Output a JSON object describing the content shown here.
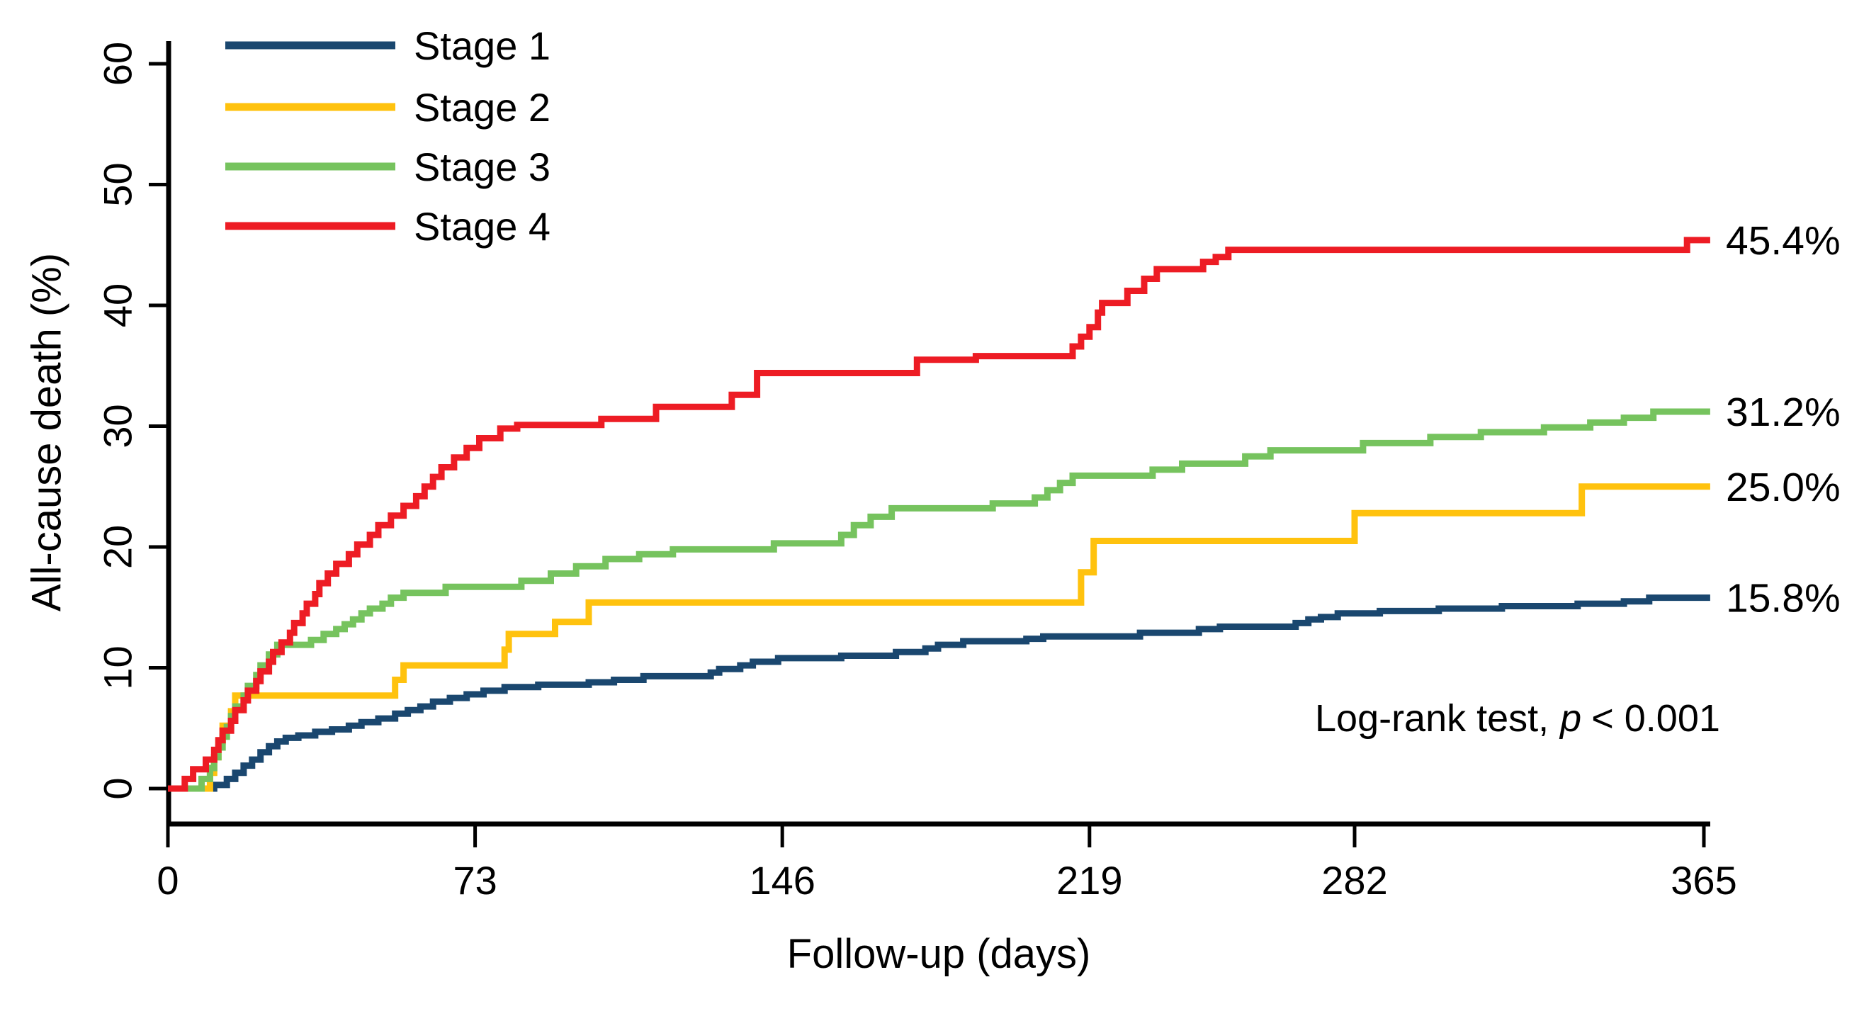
{
  "figure": {
    "background": "#ffffff",
    "axis_color": "#000000",
    "annotation": {
      "prefix": "Log-rank test,",
      "p_symbol": "p",
      "suffix": "< 0.001"
    }
  },
  "chart_data": {
    "type": "line",
    "subtype": "kaplan-meier-cumulative-incidence-step",
    "title": "",
    "xlabel": "Follow-up (days)",
    "ylabel": "All-cause death (%)",
    "xlim": [
      0,
      365
    ],
    "ylim": [
      0,
      60
    ],
    "x_ticks": [
      0,
      73,
      146,
      219,
      282,
      365
    ],
    "y_ticks": [
      0,
      10,
      20,
      30,
      40,
      50,
      60
    ],
    "grid": false,
    "legend_position": "top-left",
    "annotation": "Log-rank test, p < 0.001",
    "series": [
      {
        "name": "Stage 1",
        "color": "#1A476F",
        "final_label": "15.8%",
        "final_value": 15.8,
        "points": [
          [
            0,
            0
          ],
          [
            11,
            0.3
          ],
          [
            14,
            0.8
          ],
          [
            16,
            1.3
          ],
          [
            18,
            1.9
          ],
          [
            20,
            2.4
          ],
          [
            22,
            3.0
          ],
          [
            24,
            3.5
          ],
          [
            26,
            3.9
          ],
          [
            28,
            4.2
          ],
          [
            31,
            4.4
          ],
          [
            35,
            4.7
          ],
          [
            39,
            4.9
          ],
          [
            43,
            5.2
          ],
          [
            46,
            5.5
          ],
          [
            50,
            5.8
          ],
          [
            54,
            6.2
          ],
          [
            57,
            6.5
          ],
          [
            60,
            6.8
          ],
          [
            63,
            7.2
          ],
          [
            67,
            7.5
          ],
          [
            71,
            7.8
          ],
          [
            75,
            8.1
          ],
          [
            80,
            8.4
          ],
          [
            88,
            8.6
          ],
          [
            100,
            8.8
          ],
          [
            106,
            9.0
          ],
          [
            113,
            9.3
          ],
          [
            129,
            9.6
          ],
          [
            131,
            9.9
          ],
          [
            136,
            10.2
          ],
          [
            139,
            10.5
          ],
          [
            145,
            10.8
          ],
          [
            160,
            11.0
          ],
          [
            173,
            11.3
          ],
          [
            180,
            11.6
          ],
          [
            183,
            11.9
          ],
          [
            189,
            12.2
          ],
          [
            204,
            12.4
          ],
          [
            208,
            12.6
          ],
          [
            231,
            12.9
          ],
          [
            245,
            13.2
          ],
          [
            250,
            13.4
          ],
          [
            268,
            13.7
          ],
          [
            271,
            14.0
          ],
          [
            274,
            14.2
          ],
          [
            278,
            14.5
          ],
          [
            288,
            14.7
          ],
          [
            302,
            14.9
          ],
          [
            317,
            15.1
          ],
          [
            335,
            15.3
          ],
          [
            346,
            15.5
          ],
          [
            352,
            15.8
          ]
        ]
      },
      {
        "name": "Stage 2",
        "color": "#FFC20E",
        "final_label": "25.0%",
        "final_value": 25.0,
        "points": [
          [
            0,
            0
          ],
          [
            10,
            1.3
          ],
          [
            11,
            2.6
          ],
          [
            12,
            3.9
          ],
          [
            13,
            5.2
          ],
          [
            15,
            6.4
          ],
          [
            16,
            7.7
          ],
          [
            54,
            9.0
          ],
          [
            56,
            10.2
          ],
          [
            80,
            11.5
          ],
          [
            81,
            12.8
          ],
          [
            92,
            13.8
          ],
          [
            100,
            15.4
          ],
          [
            217,
            17.9
          ],
          [
            220,
            20.5
          ],
          [
            282,
            22.8
          ],
          [
            336,
            25.0
          ]
        ]
      },
      {
        "name": "Stage 3",
        "color": "#76C35E",
        "final_label": "31.2%",
        "final_value": 31.2,
        "points": [
          [
            0,
            0
          ],
          [
            8,
            0.8
          ],
          [
            10,
            1.7
          ],
          [
            11,
            2.6
          ],
          [
            12,
            3.4
          ],
          [
            13,
            4.3
          ],
          [
            14,
            5.1
          ],
          [
            15,
            6.0
          ],
          [
            16,
            6.8
          ],
          [
            18,
            7.7
          ],
          [
            19,
            8.5
          ],
          [
            21,
            9.4
          ],
          [
            22,
            10.2
          ],
          [
            24,
            11.1
          ],
          [
            26,
            11.9
          ],
          [
            34,
            12.3
          ],
          [
            37,
            12.8
          ],
          [
            40,
            13.2
          ],
          [
            42,
            13.6
          ],
          [
            44,
            14.0
          ],
          [
            46,
            14.5
          ],
          [
            48,
            14.9
          ],
          [
            51,
            15.3
          ],
          [
            53,
            15.8
          ],
          [
            56,
            16.2
          ],
          [
            66,
            16.7
          ],
          [
            84,
            17.2
          ],
          [
            91,
            17.8
          ],
          [
            97,
            18.4
          ],
          [
            104,
            19.0
          ],
          [
            112,
            19.4
          ],
          [
            120,
            19.8
          ],
          [
            144,
            20.3
          ],
          [
            160,
            21.0
          ],
          [
            163,
            21.8
          ],
          [
            167,
            22.5
          ],
          [
            172,
            23.2
          ],
          [
            196,
            23.6
          ],
          [
            206,
            24.1
          ],
          [
            209,
            24.7
          ],
          [
            212,
            25.3
          ],
          [
            215,
            25.9
          ],
          [
            234,
            26.4
          ],
          [
            241,
            26.9
          ],
          [
            256,
            27.5
          ],
          [
            262,
            28.0
          ],
          [
            284,
            28.6
          ],
          [
            300,
            29.1
          ],
          [
            312,
            29.5
          ],
          [
            327,
            29.9
          ],
          [
            338,
            30.3
          ],
          [
            346,
            30.7
          ],
          [
            353,
            31.2
          ]
        ]
      },
      {
        "name": "Stage 4",
        "color": "#ED1C24",
        "final_label": "45.4%",
        "final_value": 45.4,
        "points": [
          [
            0,
            0
          ],
          [
            4,
            0.8
          ],
          [
            6,
            1.6
          ],
          [
            9,
            2.4
          ],
          [
            11,
            3.2
          ],
          [
            12,
            4.0
          ],
          [
            13,
            4.8
          ],
          [
            15,
            5.6
          ],
          [
            16,
            6.5
          ],
          [
            18,
            7.3
          ],
          [
            19,
            8.1
          ],
          [
            21,
            8.9
          ],
          [
            22,
            9.7
          ],
          [
            24,
            10.5
          ],
          [
            25,
            11.3
          ],
          [
            27,
            12.1
          ],
          [
            29,
            12.9
          ],
          [
            30,
            13.7
          ],
          [
            32,
            14.5
          ],
          [
            33,
            15.3
          ],
          [
            35,
            16.1
          ],
          [
            36,
            17.0
          ],
          [
            38,
            17.8
          ],
          [
            40,
            18.6
          ],
          [
            43,
            19.4
          ],
          [
            45,
            20.2
          ],
          [
            48,
            21.0
          ],
          [
            50,
            21.8
          ],
          [
            53,
            22.6
          ],
          [
            56,
            23.4
          ],
          [
            59,
            24.2
          ],
          [
            61,
            25.0
          ],
          [
            63,
            25.8
          ],
          [
            65,
            26.6
          ],
          [
            68,
            27.4
          ],
          [
            71,
            28.2
          ],
          [
            74,
            29.0
          ],
          [
            79,
            29.8
          ],
          [
            83,
            30.1
          ],
          [
            103,
            30.6
          ],
          [
            116,
            31.6
          ],
          [
            134,
            32.6
          ],
          [
            140,
            34.4
          ],
          [
            178,
            35.5
          ],
          [
            192,
            35.8
          ],
          [
            215,
            36.6
          ],
          [
            217,
            37.4
          ],
          [
            219,
            38.2
          ],
          [
            221,
            39.4
          ],
          [
            222,
            40.2
          ],
          [
            228,
            41.2
          ],
          [
            232,
            42.2
          ],
          [
            235,
            43.0
          ],
          [
            246,
            43.6
          ],
          [
            249,
            44.0
          ],
          [
            252,
            44.6
          ],
          [
            361,
            45.4
          ]
        ]
      }
    ]
  }
}
